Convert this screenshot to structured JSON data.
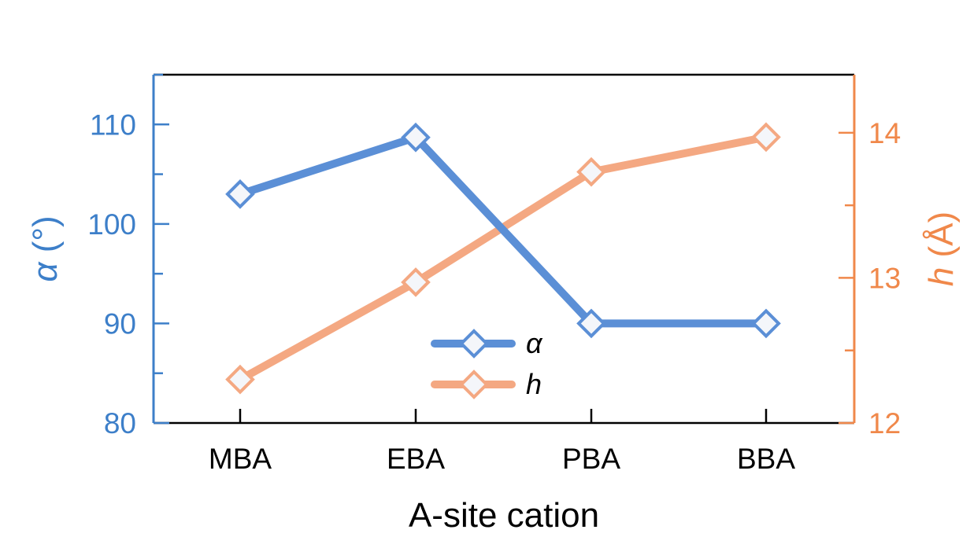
{
  "chart_data": {
    "type": "line",
    "categories": [
      "MBA",
      "EBA",
      "PBA",
      "BBA"
    ],
    "xlabel": "A-site cation",
    "y_left": {
      "label_symbol": "α",
      "label_unit": " (°)",
      "ylim": [
        80,
        115
      ],
      "ticks": [
        80,
        90,
        100,
        110
      ],
      "color": "#3d7fc9"
    },
    "y_right": {
      "label_symbol": "h",
      "label_unit": " (Å)",
      "ylim": [
        12,
        14.4
      ],
      "ticks": [
        12,
        13,
        14
      ],
      "color": "#f0884a"
    },
    "series": [
      {
        "name": "α",
        "axis": "left",
        "values": [
          103,
          108.7,
          90,
          90
        ],
        "color": "#5b8fd6"
      },
      {
        "name": "h",
        "axis": "right",
        "values": [
          12.3,
          12.97,
          13.73,
          13.97
        ],
        "color": "#f4a882"
      }
    ],
    "legend_position": "bottom-center",
    "grid": false
  }
}
